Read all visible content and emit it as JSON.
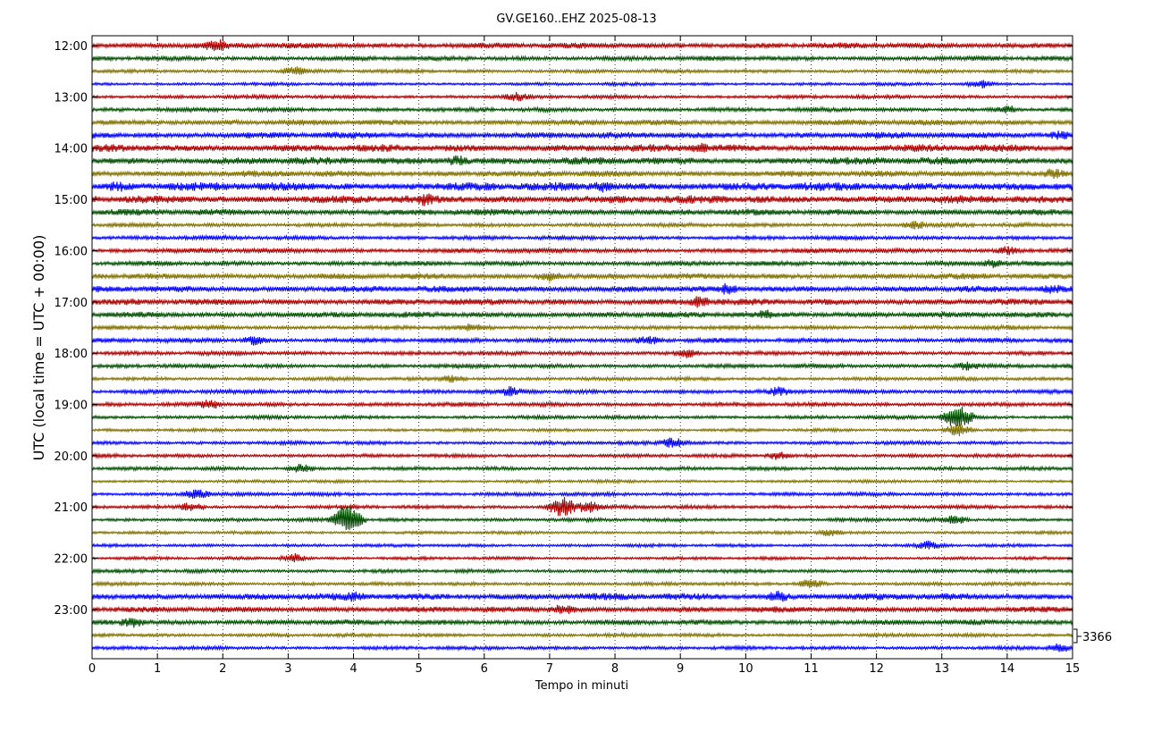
{
  "chart_data": {
    "type": "line",
    "title": "GV.GE160..EHZ 2025-08-13",
    "xlabel": "Tempo in minuti",
    "ylabel": "UTC (local time = UTC + 00:00)",
    "xlim": [
      0,
      15
    ],
    "x_ticks": [
      "0",
      "1",
      "2",
      "3",
      "4",
      "5",
      "6",
      "7",
      "8",
      "9",
      "10",
      "11",
      "12",
      "13",
      "14",
      "15"
    ],
    "y_tick_labels": [
      "12:00",
      "13:00",
      "14:00",
      "15:00",
      "16:00",
      "17:00",
      "18:00",
      "19:00",
      "20:00",
      "21:00",
      "22:00",
      "23:00"
    ],
    "vertical_grid": "dotted at each minute",
    "trace_interval_minutes": 15,
    "trace_colors": [
      "#aa0000",
      "#004d00",
      "#7f7000",
      "#0000ff"
    ],
    "scale_label": "3366",
    "traces": [
      {
        "start": "12:00",
        "amp": 0.55,
        "events": [
          {
            "x": 1.9,
            "amp": 1.3
          }
        ]
      },
      {
        "start": "12:15",
        "amp": 0.45,
        "events": []
      },
      {
        "start": "12:30",
        "amp": 0.35,
        "events": [
          {
            "x": 3.1,
            "amp": 0.9
          }
        ]
      },
      {
        "start": "12:45",
        "amp": 0.3,
        "events": [
          {
            "x": 13.6,
            "amp": 0.9
          }
        ]
      },
      {
        "start": "13:00",
        "amp": 0.35,
        "events": [
          {
            "x": 6.5,
            "amp": 0.9
          }
        ]
      },
      {
        "start": "13:15",
        "amp": 0.4,
        "events": [
          {
            "x": 14.0,
            "amp": 0.9
          }
        ]
      },
      {
        "start": "13:30",
        "amp": 0.55,
        "events": []
      },
      {
        "start": "13:45",
        "amp": 0.6,
        "events": [
          {
            "x": 14.8,
            "amp": 1.0
          }
        ]
      },
      {
        "start": "14:00",
        "amp": 0.7,
        "events": [
          {
            "x": 9.3,
            "amp": 1.0
          }
        ]
      },
      {
        "start": "14:15",
        "amp": 0.7,
        "events": [
          {
            "x": 5.6,
            "amp": 1.1
          }
        ]
      },
      {
        "start": "14:30",
        "amp": 0.6,
        "events": [
          {
            "x": 14.7,
            "amp": 1.1
          }
        ]
      },
      {
        "start": "14:45",
        "amp": 0.8,
        "events": [
          {
            "x": 0.4,
            "amp": 1.1
          },
          {
            "x": 7.8,
            "amp": 1.1
          }
        ]
      },
      {
        "start": "15:00",
        "amp": 0.75,
        "events": [
          {
            "x": 5.1,
            "amp": 1.3
          }
        ]
      },
      {
        "start": "15:15",
        "amp": 0.6,
        "events": []
      },
      {
        "start": "15:30",
        "amp": 0.4,
        "events": [
          {
            "x": 12.6,
            "amp": 0.9
          }
        ]
      },
      {
        "start": "15:45",
        "amp": 0.4,
        "events": []
      },
      {
        "start": "16:00",
        "amp": 0.45,
        "events": [
          {
            "x": 14.0,
            "amp": 0.9
          }
        ]
      },
      {
        "start": "16:15",
        "amp": 0.45,
        "events": [
          {
            "x": 13.8,
            "amp": 0.9
          }
        ]
      },
      {
        "start": "16:30",
        "amp": 0.55,
        "events": [
          {
            "x": 7.0,
            "amp": 1.1
          }
        ]
      },
      {
        "start": "16:45",
        "amp": 0.6,
        "events": [
          {
            "x": 9.7,
            "amp": 1.1
          },
          {
            "x": 14.7,
            "amp": 1.0
          }
        ]
      },
      {
        "start": "17:00",
        "amp": 0.6,
        "events": [
          {
            "x": 9.3,
            "amp": 1.2
          }
        ]
      },
      {
        "start": "17:15",
        "amp": 0.55,
        "events": [
          {
            "x": 10.3,
            "amp": 1.0
          }
        ]
      },
      {
        "start": "17:30",
        "amp": 0.4,
        "events": [
          {
            "x": 5.8,
            "amp": 0.9
          }
        ]
      },
      {
        "start": "17:45",
        "amp": 0.45,
        "events": [
          {
            "x": 2.5,
            "amp": 1.0
          },
          {
            "x": 8.5,
            "amp": 1.0
          }
        ]
      },
      {
        "start": "18:00",
        "amp": 0.4,
        "events": [
          {
            "x": 9.1,
            "amp": 0.9
          }
        ]
      },
      {
        "start": "18:15",
        "amp": 0.4,
        "events": [
          {
            "x": 13.4,
            "amp": 0.9
          }
        ]
      },
      {
        "start": "18:30",
        "amp": 0.35,
        "events": [
          {
            "x": 5.5,
            "amp": 0.8
          }
        ]
      },
      {
        "start": "18:45",
        "amp": 0.4,
        "events": [
          {
            "x": 6.4,
            "amp": 1.0
          },
          {
            "x": 10.5,
            "amp": 1.0
          }
        ]
      },
      {
        "start": "19:00",
        "amp": 0.4,
        "events": [
          {
            "x": 1.8,
            "amp": 1.0
          }
        ]
      },
      {
        "start": "19:15",
        "amp": 0.35,
        "events": [
          {
            "x": 13.25,
            "amp": 2.3
          }
        ]
      },
      {
        "start": "19:30",
        "amp": 0.3,
        "events": [
          {
            "x": 13.25,
            "amp": 1.2
          }
        ]
      },
      {
        "start": "19:45",
        "amp": 0.35,
        "events": [
          {
            "x": 8.9,
            "amp": 1.1
          }
        ]
      },
      {
        "start": "20:00",
        "amp": 0.35,
        "events": [
          {
            "x": 10.5,
            "amp": 0.9
          }
        ]
      },
      {
        "start": "20:15",
        "amp": 0.35,
        "events": [
          {
            "x": 3.2,
            "amp": 0.9
          }
        ]
      },
      {
        "start": "20:30",
        "amp": 0.3,
        "events": []
      },
      {
        "start": "20:45",
        "amp": 0.35,
        "events": [
          {
            "x": 1.6,
            "amp": 1.1
          }
        ]
      },
      {
        "start": "21:00",
        "amp": 0.35,
        "events": [
          {
            "x": 7.2,
            "amp": 1.9
          },
          {
            "x": 7.6,
            "amp": 1.3
          },
          {
            "x": 1.5,
            "amp": 0.9
          }
        ]
      },
      {
        "start": "21:15",
        "amp": 0.35,
        "events": [
          {
            "x": 3.9,
            "amp": 2.8
          },
          {
            "x": 13.2,
            "amp": 0.9
          }
        ]
      },
      {
        "start": "21:30",
        "amp": 0.3,
        "events": [
          {
            "x": 11.3,
            "amp": 0.8
          }
        ]
      },
      {
        "start": "21:45",
        "amp": 0.3,
        "events": [
          {
            "x": 12.8,
            "amp": 0.9
          }
        ]
      },
      {
        "start": "22:00",
        "amp": 0.3,
        "events": [
          {
            "x": 3.1,
            "amp": 0.9
          }
        ]
      },
      {
        "start": "22:15",
        "amp": 0.35,
        "events": []
      },
      {
        "start": "22:30",
        "amp": 0.35,
        "events": [
          {
            "x": 11.0,
            "amp": 1.0
          }
        ]
      },
      {
        "start": "22:45",
        "amp": 0.65,
        "events": [
          {
            "x": 4.0,
            "amp": 1.1
          },
          {
            "x": 10.5,
            "amp": 1.1
          }
        ]
      },
      {
        "start": "23:00",
        "amp": 0.55,
        "events": [
          {
            "x": 7.2,
            "amp": 1.1
          }
        ]
      },
      {
        "start": "23:15",
        "amp": 0.5,
        "events": [
          {
            "x": 0.6,
            "amp": 1.1
          }
        ]
      },
      {
        "start": "23:30",
        "amp": 0.35,
        "events": []
      },
      {
        "start": "23:45",
        "amp": 0.35,
        "events": [
          {
            "x": 14.8,
            "amp": 0.9
          }
        ]
      }
    ]
  }
}
